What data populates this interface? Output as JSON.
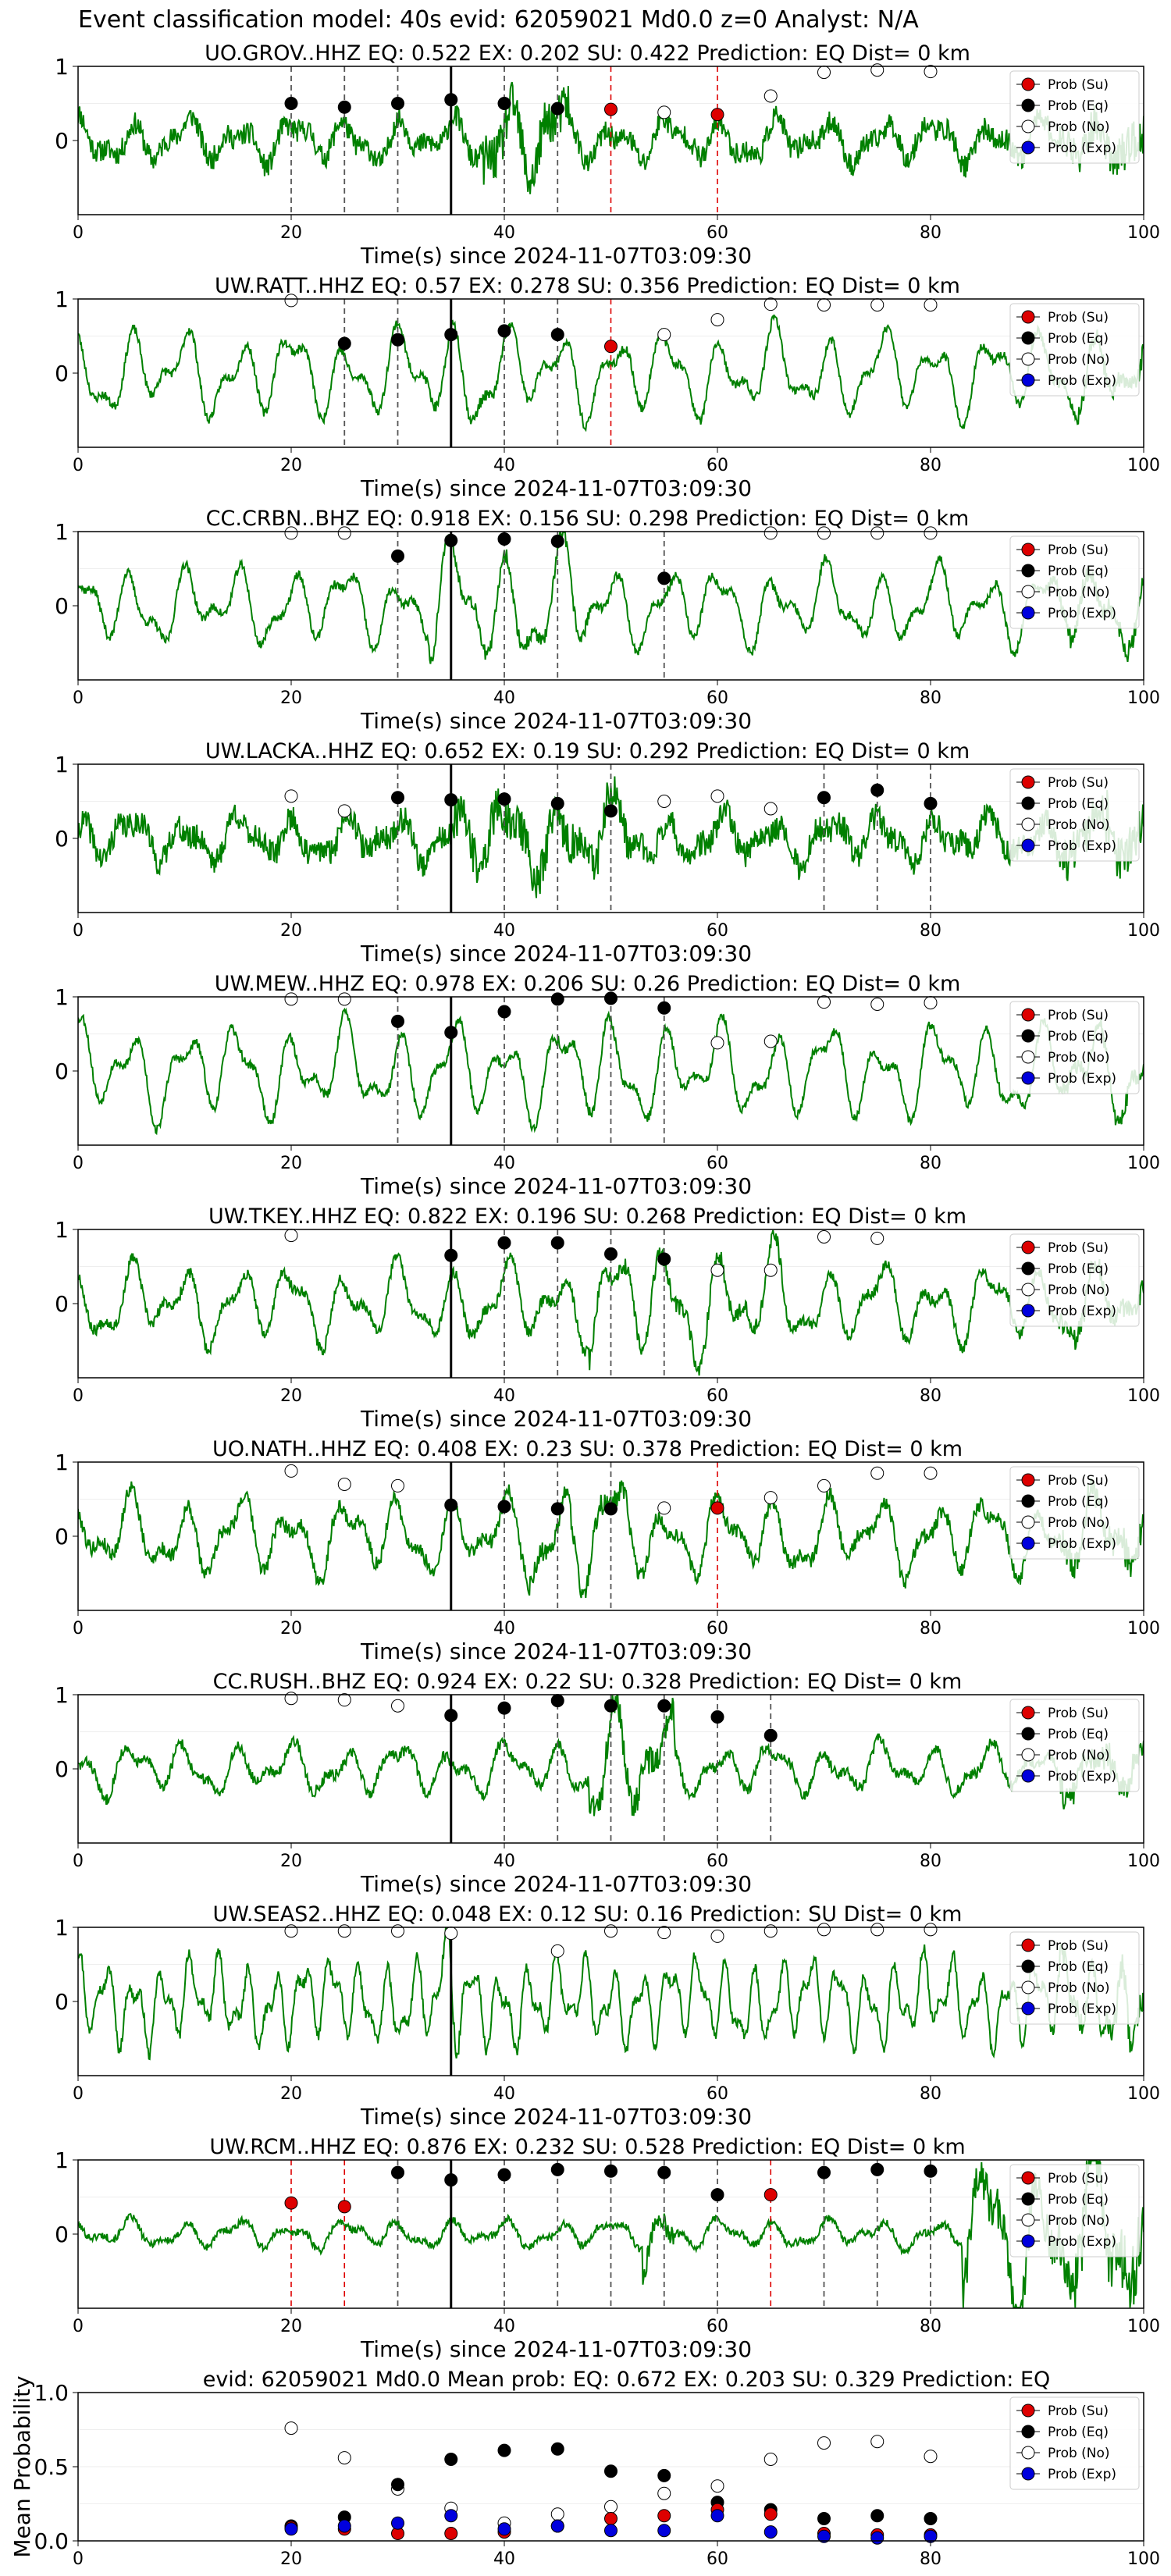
{
  "figure": {
    "title": "Event classification model: 40s evid: 62059021 Md0.0 z=0 Analyst: N/A"
  },
  "colors": {
    "waveform": "#008000",
    "su": "#dd0000",
    "eq": "#000000",
    "no": "#ffffff",
    "exp": "#0000dd",
    "eq_line": "#555555",
    "su_line": "#dd0000",
    "arrival_line": "#000000"
  },
  "legend_entries": [
    "Prob (Su)",
    "Prob (Eq)",
    "Prob (No)",
    "Prob (Exp)"
  ],
  "chart_data": [
    {
      "type": "line",
      "station": "UO.GROV..HHZ",
      "title": "UO.GROV..HHZ   EQ: 0.522  EX: 0.202  SU: 0.422   Prediction: EQ    Dist= 0 km",
      "xlabel": "Time(s) since 2024-11-07T03:09:30",
      "xlim": [
        0,
        100
      ],
      "ylim": [
        -1,
        1
      ],
      "xticks": [
        "0",
        "20",
        "40",
        "60",
        "80",
        "100"
      ],
      "yticks": [
        "1",
        "0"
      ],
      "legend": "top-right",
      "arrival": 35,
      "eq_lines": [
        20,
        25,
        30,
        40,
        45
      ],
      "su_lines": [
        50,
        60
      ],
      "eq_points": [
        [
          20,
          0.5
        ],
        [
          25,
          0.45
        ],
        [
          30,
          0.5
        ],
        [
          35,
          0.55
        ],
        [
          40,
          0.5
        ],
        [
          45,
          0.43
        ]
      ],
      "su_points": [
        [
          50,
          0.42
        ],
        [
          60,
          0.35
        ]
      ],
      "no_points": [
        [
          55,
          0.38
        ],
        [
          65,
          0.6
        ],
        [
          70,
          0.92
        ],
        [
          75,
          0.95
        ],
        [
          80,
          0.93
        ]
      ],
      "exp_points": [],
      "wave": {
        "seed": 11,
        "amp": 0.28,
        "noise": 0.3,
        "burst": [
          38,
          46
        ],
        "burst_gain": 2.1,
        "tail": 0.4
      }
    },
    {
      "type": "line",
      "station": "UW.RATT..HHZ",
      "title": "UW.RATT..HHZ   EQ: 0.57  EX: 0.278  SU: 0.356   Prediction: EQ    Dist= 0 km",
      "xlabel": "Time(s) since 2024-11-07T03:09:30",
      "xlim": [
        0,
        100
      ],
      "ylim": [
        -1,
        1
      ],
      "xticks": [
        "0",
        "20",
        "40",
        "60",
        "80",
        "100"
      ],
      "yticks": [
        "1",
        "0"
      ],
      "legend": "top-right",
      "arrival": 35,
      "eq_lines": [
        25,
        30,
        40,
        45
      ],
      "su_lines": [
        50
      ],
      "eq_points": [
        [
          25,
          0.4
        ],
        [
          30,
          0.45
        ],
        [
          35,
          0.52
        ],
        [
          40,
          0.57
        ],
        [
          45,
          0.52
        ]
      ],
      "su_points": [
        [
          50,
          0.36
        ]
      ],
      "no_points": [
        [
          20,
          0.98
        ],
        [
          55,
          0.52
        ],
        [
          60,
          0.72
        ],
        [
          65,
          0.93
        ],
        [
          70,
          0.92
        ],
        [
          75,
          0.92
        ],
        [
          80,
          0.92
        ]
      ],
      "exp_points": [],
      "wave": {
        "seed": 23,
        "amp": 0.55,
        "noise": 0.12,
        "burst": [
          33,
          40
        ],
        "burst_gain": 1.3,
        "tail": 0.2
      }
    },
    {
      "type": "line",
      "station": "CC.CRBN..BHZ",
      "title": "CC.CRBN..BHZ   EQ: 0.918  EX: 0.156  SU: 0.298   Prediction: EQ    Dist= 0 km",
      "xlabel": "Time(s) since 2024-11-07T03:09:30",
      "xlim": [
        0,
        100
      ],
      "ylim": [
        -1,
        1
      ],
      "xticks": [
        "0",
        "20",
        "40",
        "60",
        "80",
        "100"
      ],
      "yticks": [
        "1",
        "0"
      ],
      "legend": "top-right",
      "arrival": 35,
      "eq_lines": [
        30,
        40,
        45,
        55
      ],
      "su_lines": [],
      "eq_points": [
        [
          30,
          0.67
        ],
        [
          35,
          0.88
        ],
        [
          40,
          0.9
        ],
        [
          45,
          0.87
        ],
        [
          55,
          0.37
        ]
      ],
      "su_points": [],
      "no_points": [
        [
          20,
          0.98
        ],
        [
          25,
          0.98
        ],
        [
          65,
          0.98
        ],
        [
          70,
          0.98
        ],
        [
          75,
          0.98
        ],
        [
          80,
          0.98
        ]
      ],
      "exp_points": [],
      "wave": {
        "seed": 37,
        "amp": 0.5,
        "noise": 0.12,
        "burst": [
          33,
          48
        ],
        "burst_gain": 1.6,
        "tail": 0.25
      }
    },
    {
      "type": "line",
      "station": "UW.LACKA..HHZ",
      "title": "UW.LACKA..HHZ   EQ: 0.652  EX: 0.19  SU: 0.292   Prediction: EQ    Dist= 0 km",
      "xlabel": "Time(s) since 2024-11-07T03:09:30",
      "xlim": [
        0,
        100
      ],
      "ylim": [
        -1,
        1
      ],
      "xticks": [
        "0",
        "20",
        "40",
        "60",
        "80",
        "100"
      ],
      "yticks": [
        "1",
        "0"
      ],
      "legend": "top-right",
      "arrival": 35,
      "eq_lines": [
        30,
        40,
        45,
        50,
        70,
        75,
        80
      ],
      "su_lines": [],
      "eq_points": [
        [
          30,
          0.55
        ],
        [
          35,
          0.52
        ],
        [
          40,
          0.53
        ],
        [
          45,
          0.47
        ],
        [
          50,
          0.37
        ],
        [
          70,
          0.55
        ],
        [
          75,
          0.65
        ],
        [
          80,
          0.47
        ]
      ],
      "su_points": [],
      "no_points": [
        [
          20,
          0.57
        ],
        [
          25,
          0.37
        ],
        [
          55,
          0.5
        ],
        [
          60,
          0.57
        ],
        [
          65,
          0.4
        ]
      ],
      "exp_points": [],
      "wave": {
        "seed": 41,
        "amp": 0.3,
        "noise": 0.35,
        "burst": [
          35,
          52
        ],
        "burst_gain": 1.6,
        "tail": 0.5
      }
    },
    {
      "type": "line",
      "station": "UW.MEW..HHZ",
      "title": "UW.MEW..HHZ   EQ: 0.978  EX: 0.206  SU: 0.26   Prediction: EQ    Dist= 0 km",
      "xlabel": "Time(s) since 2024-11-07T03:09:30",
      "xlim": [
        0,
        100
      ],
      "ylim": [
        -1,
        1
      ],
      "xticks": [
        "0",
        "20",
        "40",
        "60",
        "80",
        "100"
      ],
      "yticks": [
        "1",
        "0"
      ],
      "legend": "top-right",
      "arrival": 35,
      "eq_lines": [
        30,
        40,
        45,
        50,
        55
      ],
      "su_lines": [],
      "eq_points": [
        [
          30,
          0.67
        ],
        [
          35,
          0.52
        ],
        [
          40,
          0.8
        ],
        [
          45,
          0.97
        ],
        [
          50,
          0.98
        ],
        [
          55,
          0.85
        ]
      ],
      "su_points": [],
      "no_points": [
        [
          20,
          0.97
        ],
        [
          25,
          0.97
        ],
        [
          60,
          0.38
        ],
        [
          65,
          0.4
        ],
        [
          70,
          0.93
        ],
        [
          75,
          0.9
        ],
        [
          80,
          0.92
        ]
      ],
      "exp_points": [],
      "wave": {
        "seed": 53,
        "amp": 0.6,
        "noise": 0.12,
        "burst": [
          45,
          52
        ],
        "burst_gain": 1.2,
        "tail": 0.2
      }
    },
    {
      "type": "line",
      "station": "UW.TKEY..HHZ",
      "title": "UW.TKEY..HHZ   EQ: 0.822  EX: 0.196  SU: 0.268   Prediction: EQ    Dist= 0 km",
      "xlabel": "Time(s) since 2024-11-07T03:09:30",
      "xlim": [
        0,
        100
      ],
      "ylim": [
        -1,
        1
      ],
      "xticks": [
        "0",
        "20",
        "40",
        "60",
        "80",
        "100"
      ],
      "yticks": [
        "1",
        "0"
      ],
      "legend": "top-right",
      "arrival": 35,
      "eq_lines": [
        40,
        45,
        50,
        55
      ],
      "su_lines": [],
      "eq_points": [
        [
          35,
          0.65
        ],
        [
          40,
          0.82
        ],
        [
          45,
          0.82
        ],
        [
          50,
          0.67
        ],
        [
          55,
          0.6
        ]
      ],
      "su_points": [],
      "no_points": [
        [
          20,
          0.92
        ],
        [
          60,
          0.45
        ],
        [
          65,
          0.45
        ],
        [
          70,
          0.9
        ],
        [
          75,
          0.88
        ]
      ],
      "exp_points": [],
      "wave": {
        "seed": 67,
        "amp": 0.5,
        "noise": 0.15,
        "burst": [
          48,
          66
        ],
        "burst_gain": 1.5,
        "tail": 0.25
      }
    },
    {
      "type": "line",
      "station": "UO.NATH..HHZ",
      "title": "UO.NATH..HHZ   EQ: 0.408  EX: 0.23  SU: 0.378   Prediction: EQ    Dist= 0 km",
      "xlabel": "Time(s) since 2024-11-07T03:09:30",
      "xlim": [
        0,
        100
      ],
      "ylim": [
        -1,
        1
      ],
      "xticks": [
        "0",
        "20",
        "40",
        "60",
        "80",
        "100"
      ],
      "yticks": [
        "1",
        "0"
      ],
      "legend": "top-right",
      "arrival": 35,
      "eq_lines": [
        40,
        45,
        50
      ],
      "su_lines": [
        60
      ],
      "eq_points": [
        [
          35,
          0.42
        ],
        [
          40,
          0.4
        ],
        [
          45,
          0.37
        ],
        [
          50,
          0.37
        ]
      ],
      "su_points": [
        [
          60,
          0.38
        ]
      ],
      "no_points": [
        [
          20,
          0.88
        ],
        [
          25,
          0.7
        ],
        [
          30,
          0.68
        ],
        [
          55,
          0.38
        ],
        [
          65,
          0.52
        ],
        [
          70,
          0.68
        ],
        [
          75,
          0.85
        ],
        [
          80,
          0.85
        ]
      ],
      "exp_points": [],
      "wave": {
        "seed": 79,
        "amp": 0.5,
        "noise": 0.2,
        "burst": [
          42,
          52
        ],
        "burst_gain": 1.5,
        "tail": 0.35
      }
    },
    {
      "type": "line",
      "station": "CC.RUSH..BHZ",
      "title": "CC.RUSH..BHZ   EQ: 0.924  EX: 0.22  SU: 0.328   Prediction: EQ    Dist= 0 km",
      "xlabel": "Time(s) since 2024-11-07T03:09:30",
      "xlim": [
        0,
        100
      ],
      "ylim": [
        -1,
        1
      ],
      "xticks": [
        "0",
        "20",
        "40",
        "60",
        "80",
        "100"
      ],
      "yticks": [
        "1",
        "0"
      ],
      "legend": "top-right",
      "arrival": 35,
      "eq_lines": [
        40,
        45,
        50,
        55,
        60,
        65
      ],
      "su_lines": [],
      "eq_points": [
        [
          35,
          0.72
        ],
        [
          40,
          0.82
        ],
        [
          45,
          0.92
        ],
        [
          50,
          0.85
        ],
        [
          55,
          0.85
        ],
        [
          60,
          0.7
        ],
        [
          65,
          0.45
        ]
      ],
      "su_points": [],
      "no_points": [
        [
          20,
          0.95
        ],
        [
          25,
          0.93
        ],
        [
          30,
          0.85
        ]
      ],
      "exp_points": [],
      "wave": {
        "seed": 83,
        "amp": 0.32,
        "noise": 0.15,
        "burst": [
          48,
          56
        ],
        "burst_gain": 2.6,
        "tail": 0.3
      }
    },
    {
      "type": "line",
      "station": "UW.SEAS2..HHZ",
      "title": "UW.SEAS2..HHZ   EQ: 0.048  EX: 0.12  SU: 0.16   Prediction: SU    Dist= 0 km",
      "xlabel": "Time(s) since 2024-11-07T03:09:30",
      "xlim": [
        0,
        100
      ],
      "ylim": [
        -1,
        1
      ],
      "xticks": [
        "0",
        "20",
        "40",
        "60",
        "80",
        "100"
      ],
      "yticks": [
        "1",
        "0"
      ],
      "legend": "top-right",
      "arrival": 35,
      "eq_lines": [],
      "su_lines": [],
      "eq_points": [],
      "su_points": [],
      "no_points": [
        [
          20,
          0.95
        ],
        [
          25,
          0.95
        ],
        [
          30,
          0.95
        ],
        [
          35,
          0.92
        ],
        [
          45,
          0.68
        ],
        [
          50,
          0.95
        ],
        [
          55,
          0.93
        ],
        [
          60,
          0.88
        ],
        [
          65,
          0.95
        ],
        [
          70,
          0.97
        ],
        [
          75,
          0.97
        ],
        [
          80,
          0.97
        ]
      ],
      "exp_points": [],
      "wave": {
        "seed": 97,
        "amp": 0.55,
        "noise": 0.15,
        "burst": [
          34,
          36
        ],
        "burst_gain": 1.6,
        "tail": 0.3,
        "fast": true
      }
    },
    {
      "type": "line",
      "station": "UW.RCM..HHZ",
      "title": "UW.RCM..HHZ   EQ: 0.876  EX: 0.232  SU: 0.528   Prediction: EQ    Dist= 0 km",
      "xlabel": "Time(s) since 2024-11-07T03:09:30",
      "xlim": [
        0,
        100
      ],
      "ylim": [
        -1,
        1
      ],
      "xticks": [
        "0",
        "20",
        "40",
        "60",
        "80",
        "100"
      ],
      "yticks": [
        "1",
        "0"
      ],
      "legend": "top-right",
      "arrival": 35,
      "eq_lines": [
        30,
        40,
        45,
        50,
        55,
        60,
        70,
        75,
        80
      ],
      "su_lines": [
        20,
        25,
        65
      ],
      "eq_points": [
        [
          30,
          0.83
        ],
        [
          35,
          0.73
        ],
        [
          40,
          0.8
        ],
        [
          45,
          0.87
        ],
        [
          50,
          0.85
        ],
        [
          55,
          0.83
        ],
        [
          60,
          0.53
        ],
        [
          70,
          0.83
        ],
        [
          75,
          0.87
        ],
        [
          80,
          0.85
        ]
      ],
      "su_points": [
        [
          20,
          0.42
        ],
        [
          25,
          0.37
        ],
        [
          65,
          0.53
        ]
      ],
      "no_points": [],
      "exp_points": [],
      "wave": {
        "seed": 101,
        "amp": 0.18,
        "noise": 0.1,
        "burst": [
          53,
          56
        ],
        "burst_gain": 2.8,
        "tail": 0.1,
        "late": [
          83,
          100
        ],
        "late_gain": 5.5
      }
    },
    {
      "type": "scatter",
      "title": "evid: 62059021  Md0.0   Mean prob:   EQ: 0.672  EX: 0.203  SU: 0.329   Prediction: EQ",
      "ylabel": "Mean Probability",
      "xlim": [
        0,
        100
      ],
      "ylim": [
        0,
        1
      ],
      "xticks": [
        "0",
        "20",
        "40",
        "60",
        "80",
        "100"
      ],
      "yticks": [
        "0.0",
        "0.5",
        "1.0"
      ],
      "legend": "top-right",
      "x": [
        20,
        25,
        30,
        35,
        40,
        45,
        50,
        55,
        60,
        65,
        70,
        75,
        80
      ],
      "series": [
        {
          "name": "Prob (No)",
          "values": [
            0.76,
            0.56,
            0.35,
            0.22,
            0.12,
            0.18,
            0.23,
            0.32,
            0.37,
            0.55,
            0.66,
            0.67,
            0.57
          ]
        },
        {
          "name": "Prob (Eq)",
          "values": [
            0.1,
            0.16,
            0.38,
            0.55,
            0.61,
            0.62,
            0.47,
            0.44,
            0.26,
            0.21,
            0.15,
            0.17,
            0.15
          ]
        },
        {
          "name": "Prob (Su)",
          "values": [
            0.09,
            0.08,
            0.05,
            0.05,
            0.06,
            0.1,
            0.15,
            0.17,
            0.21,
            0.18,
            0.05,
            0.04,
            0.04
          ]
        },
        {
          "name": "Prob (Exp)",
          "values": [
            0.08,
            0.1,
            0.12,
            0.17,
            0.08,
            0.1,
            0.07,
            0.07,
            0.17,
            0.06,
            0.03,
            0.02,
            0.03
          ]
        }
      ]
    }
  ]
}
